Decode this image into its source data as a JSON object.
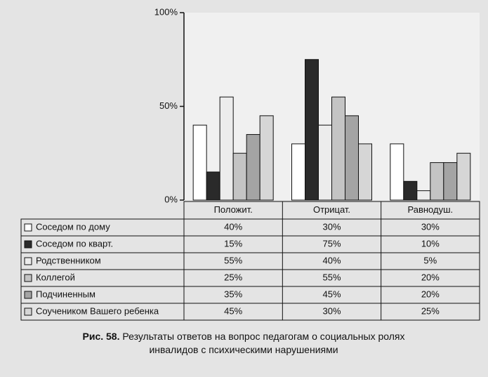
{
  "chart_data": {
    "type": "bar",
    "caption_label": "Рис. 58.",
    "caption_text": "Результаты ответов на вопрос педагогам о социальных ролях инвалидов с психическими нарушениями",
    "categories": [
      "Положит.",
      "Отрицат.",
      "Равнодуш."
    ],
    "series": [
      {
        "name": "Соседом по дому",
        "color": "#ffffff",
        "values": [
          40,
          30,
          30
        ],
        "value_labels": [
          "40%",
          "30%",
          "30%"
        ]
      },
      {
        "name": "Соседом по кварт.",
        "color": "#2a2a2a",
        "values": [
          15,
          75,
          10
        ],
        "value_labels": [
          "15%",
          "75%",
          "10%"
        ]
      },
      {
        "name": "Родственником",
        "color": "#ececec",
        "values": [
          55,
          40,
          5
        ],
        "value_labels": [
          "55%",
          "40%",
          "5%"
        ]
      },
      {
        "name": "Коллегой",
        "color": "#c4c4c4",
        "values": [
          25,
          55,
          20
        ],
        "value_labels": [
          "25%",
          "55%",
          "20%"
        ]
      },
      {
        "name": "Подчиненным",
        "color": "#a4a4a4",
        "values": [
          35,
          45,
          20
        ],
        "value_labels": [
          "35%",
          "45%",
          "20%"
        ]
      },
      {
        "name": "Соучеником Вашего ребенка",
        "color": "#d6d6d6",
        "values": [
          45,
          30,
          25
        ],
        "value_labels": [
          "45%",
          "30%",
          "25%"
        ]
      }
    ],
    "ylim": [
      0,
      100
    ],
    "yticks": [
      {
        "value": 0,
        "label": "0%"
      },
      {
        "value": 50,
        "label": "50%"
      },
      {
        "value": 100,
        "label": "100%"
      }
    ],
    "grid": false
  }
}
